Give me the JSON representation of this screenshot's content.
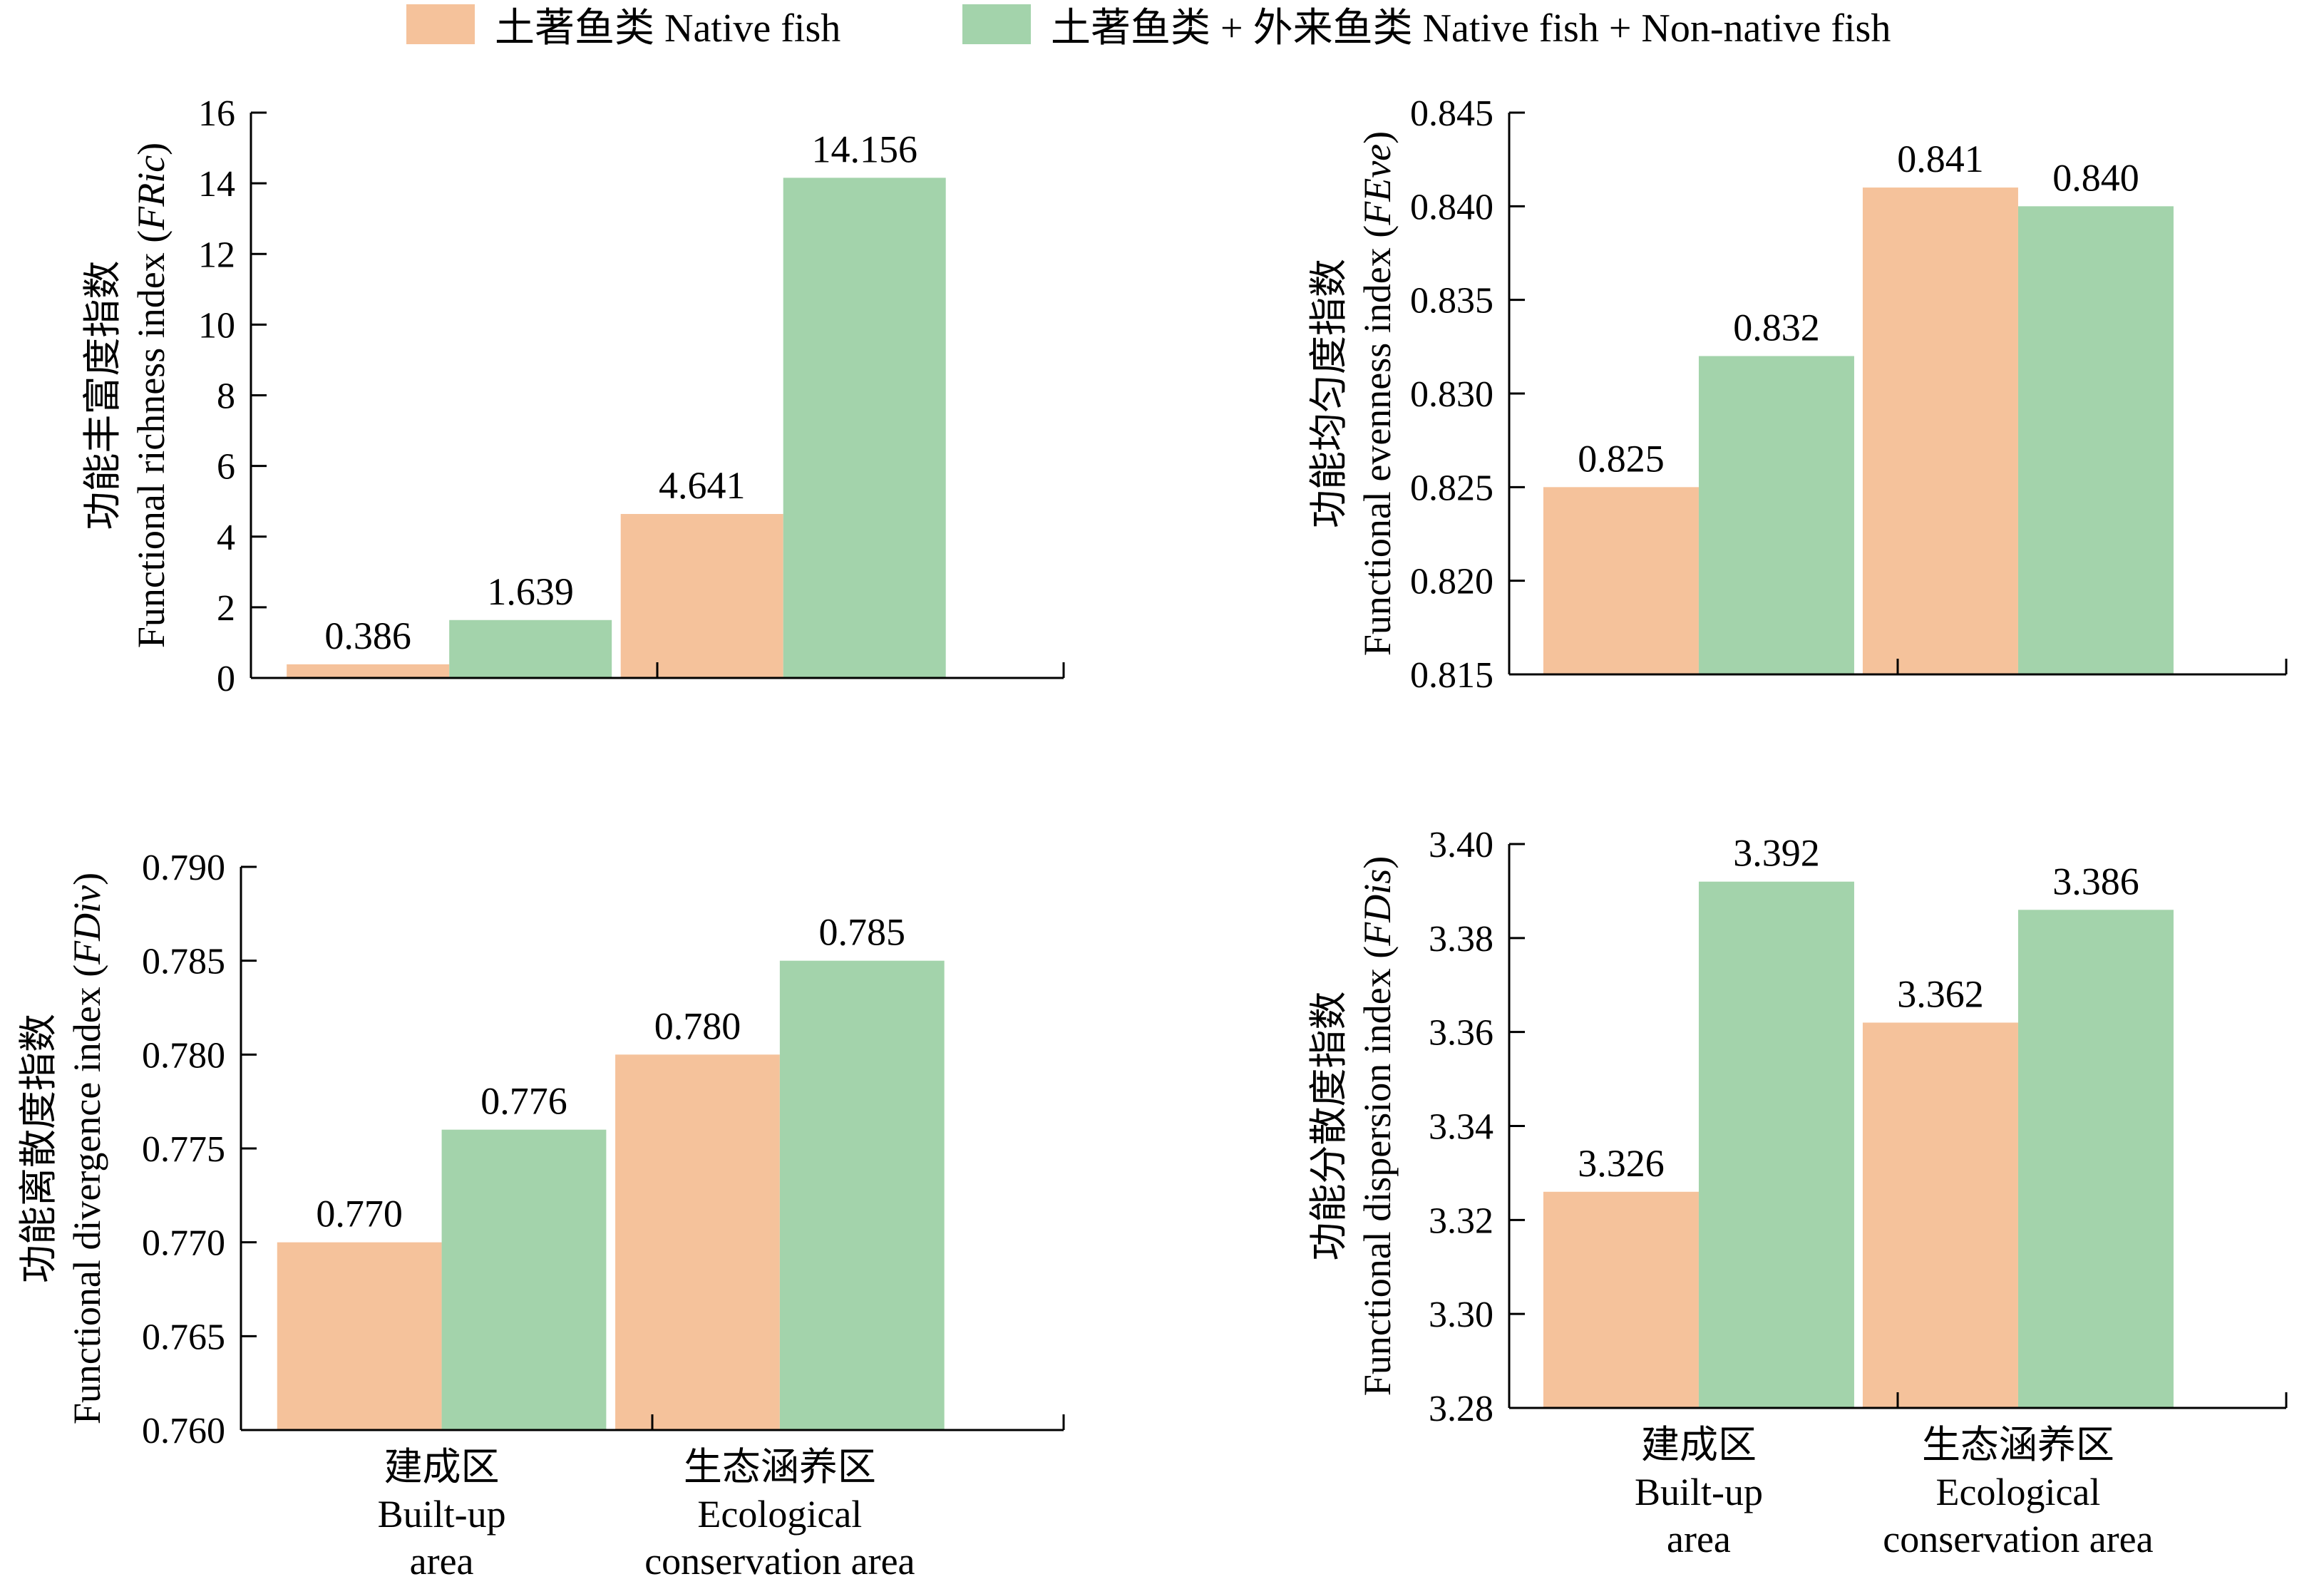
{
  "legend": [
    {
      "label": "土著鱼类 Native fish",
      "color": "#f5c29b"
    },
    {
      "label": "土著鱼类 + 外来鱼类 Native fish + Non-native fish",
      "color": "#a3d3ab"
    }
  ],
  "chart_data": [
    {
      "type": "bar",
      "categories": [
        "建成区 Built-up area",
        "生态涵养区 Ecological conservation area"
      ],
      "series": [
        {
          "name": "土著鱼类 Native fish",
          "values": [
            0.386,
            4.641
          ]
        },
        {
          "name": "土著鱼类 + 外来鱼类 Native fish + Non-native fish",
          "values": [
            1.639,
            14.156
          ]
        }
      ],
      "data_labels": [
        [
          "0.386",
          "4.641"
        ],
        [
          "1.639",
          "14.156"
        ]
      ],
      "ylabel_cn": "功能丰富度指数",
      "ylabel_en": "Functional richness index",
      "ylabel_abbr": "FRic",
      "ylim": [
        0,
        16
      ],
      "yticks": [
        "0",
        "2",
        "4",
        "6",
        "8",
        "10",
        "12",
        "14",
        "16"
      ]
    },
    {
      "type": "bar",
      "categories": [
        "建成区 Built-up area",
        "生态涵养区 Ecological conservation area"
      ],
      "series": [
        {
          "name": "土著鱼类 Native fish",
          "values": [
            0.825,
            0.841
          ]
        },
        {
          "name": "土著鱼类 + 外来鱼类 Native fish + Non-native fish",
          "values": [
            0.832,
            0.84
          ]
        }
      ],
      "data_labels": [
        [
          "0.825",
          "0.841"
        ],
        [
          "0.832",
          "0.840"
        ]
      ],
      "ylabel_cn": "功能均匀度指数",
      "ylabel_en": "Functional evenness index",
      "ylabel_abbr": "FEve",
      "ylim": [
        0.815,
        0.845
      ],
      "yticks": [
        "0.815",
        "0.820",
        "0.825",
        "0.830",
        "0.835",
        "0.840",
        "0.845"
      ]
    },
    {
      "type": "bar",
      "categories": [
        "建成区 Built-up area",
        "生态涵养区 Ecological conservation area"
      ],
      "series": [
        {
          "name": "土著鱼类 Native fish",
          "values": [
            0.77,
            0.78
          ]
        },
        {
          "name": "土著鱼类 + 外来鱼类 Native fish + Non-native fish",
          "values": [
            0.776,
            0.785
          ]
        }
      ],
      "data_labels": [
        [
          "0.770",
          "0.780"
        ],
        [
          "0.776",
          "0.785"
        ]
      ],
      "ylabel_cn": "功能离散度指数",
      "ylabel_en": "Functional divergence index",
      "ylabel_abbr": "FDiv",
      "ylim": [
        0.76,
        0.79
      ],
      "yticks": [
        "0.760",
        "0.765",
        "0.770",
        "0.775",
        "0.780",
        "0.785",
        "0.790"
      ],
      "category_labels": [
        [
          "建成区",
          "Built-up",
          "area"
        ],
        [
          "生态涵养区",
          "Ecological",
          "conservation area"
        ]
      ]
    },
    {
      "type": "bar",
      "categories": [
        "建成区 Built-up area",
        "生态涵养区 Ecological conservation area"
      ],
      "series": [
        {
          "name": "土著鱼类 Native fish",
          "values": [
            3.326,
            3.362
          ]
        },
        {
          "name": "土著鱼类 + 外来鱼类 Native fish + Non-native fish",
          "values": [
            3.392,
            3.386
          ]
        }
      ],
      "data_labels": [
        [
          "3.326",
          "3.362"
        ],
        [
          "3.392",
          "3.386"
        ]
      ],
      "ylabel_cn": "功能分散度指数",
      "ylabel_en": "Functional dispersion index",
      "ylabel_abbr": "FDis",
      "ylim": [
        3.28,
        3.4
      ],
      "yticks": [
        "3.28",
        "3.30",
        "3.32",
        "3.34",
        "3.36",
        "3.38",
        "3.40"
      ],
      "category_labels": [
        [
          "建成区",
          "Built-up",
          "area"
        ],
        [
          "生态涵养区",
          "Ecological",
          "conservation area"
        ]
      ]
    }
  ]
}
